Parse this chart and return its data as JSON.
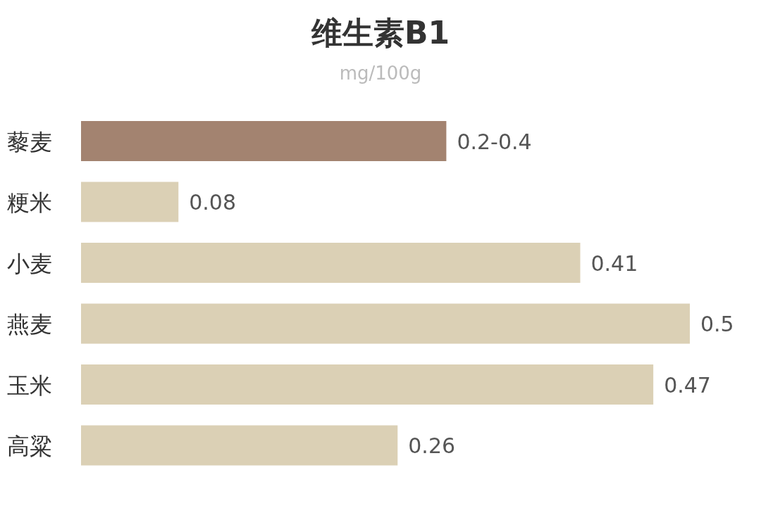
{
  "chart_data": {
    "type": "bar",
    "orientation": "horizontal",
    "title": "维生素B1",
    "subtitle": "mg/100g",
    "categories": [
      "藜麦",
      "粳米",
      "小麦",
      "燕麦",
      "玉米",
      "高粱"
    ],
    "values": [
      0.3,
      0.08,
      0.41,
      0.5,
      0.47,
      0.26
    ],
    "value_labels": [
      "0.2-0.4",
      "0.08",
      "0.41",
      "0.5",
      "0.47",
      "0.26"
    ],
    "colors": [
      "#a38370",
      "#dbd0b5",
      "#dbd0b5",
      "#dbd0b5",
      "#dbd0b5",
      "#dbd0b5"
    ],
    "grid": false
  }
}
